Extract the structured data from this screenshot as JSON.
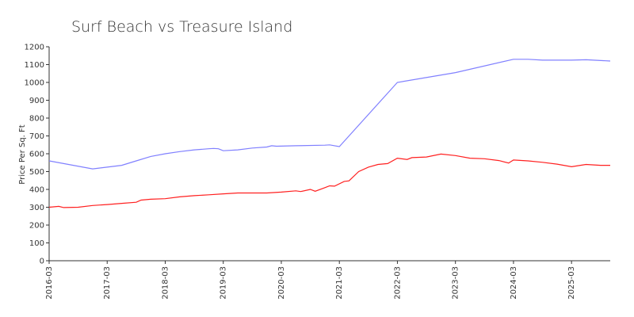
{
  "chart_data": {
    "type": "line",
    "title": "Surf Beach vs Treasure Island",
    "y_label": "Price Per Sq. Ft",
    "xlim": [
      "2016-03",
      "2025-11"
    ],
    "xticks": [
      "2016-03",
      "2017-03",
      "2018-03",
      "2019-03",
      "2020-03",
      "2021-03",
      "2022-03",
      "2023-03",
      "2024-03",
      "2025-03"
    ],
    "ylim": [
      0,
      1200
    ],
    "yticks": [
      0,
      100,
      200,
      300,
      400,
      500,
      600,
      700,
      800,
      900,
      1000,
      1100,
      1200
    ],
    "series": [
      {
        "color": "#8080ff",
        "x": [
          "2016-03",
          "2016-12",
          "2017-03",
          "2017-06",
          "2017-09",
          "2017-12",
          "2018-03",
          "2018-06",
          "2018-09",
          "2018-12",
          "2019-01",
          "2019-02",
          "2019-03",
          "2019-06",
          "2019-09",
          "2019-12",
          "2020-01",
          "2020-02",
          "2020-06",
          "2020-12",
          "2021-01",
          "2021-03",
          "2022-03",
          "2023-03",
          "2024-03",
          "2024-06",
          "2024-09",
          "2025-03",
          "2025-06",
          "2025-11"
        ],
        "values": [
          560,
          515,
          525,
          535,
          560,
          585,
          600,
          612,
          622,
          628,
          630,
          628,
          617,
          622,
          632,
          638,
          645,
          642,
          645,
          648,
          650,
          640,
          1000,
          1055,
          1130,
          1130,
          1125,
          1125,
          1127,
          1120
        ]
      },
      {
        "color": "#ff2020",
        "x": [
          "2016-03",
          "2016-05",
          "2016-06",
          "2016-09",
          "2016-12",
          "2017-03",
          "2017-06",
          "2017-09",
          "2017-10",
          "2017-12",
          "2018-03",
          "2018-06",
          "2018-09",
          "2018-12",
          "2019-03",
          "2019-06",
          "2019-09",
          "2019-12",
          "2020-03",
          "2020-06",
          "2020-07",
          "2020-09",
          "2020-10",
          "2020-12",
          "2021-01",
          "2021-02",
          "2021-04",
          "2021-05",
          "2021-07",
          "2021-09",
          "2021-11",
          "2022-01",
          "2022-03",
          "2022-05",
          "2022-06",
          "2022-09",
          "2022-12",
          "2023-03",
          "2023-06",
          "2023-09",
          "2023-12",
          "2024-02",
          "2024-03",
          "2024-06",
          "2024-09",
          "2024-12",
          "2025-03",
          "2025-06",
          "2025-09",
          "2025-11"
        ],
        "values": [
          300,
          305,
          298,
          300,
          310,
          315,
          322,
          328,
          340,
          345,
          348,
          358,
          365,
          370,
          375,
          380,
          380,
          380,
          385,
          392,
          388,
          400,
          390,
          410,
          420,
          418,
          445,
          448,
          500,
          525,
          540,
          545,
          575,
          568,
          578,
          582,
          598,
          590,
          575,
          572,
          562,
          548,
          565,
          560,
          552,
          542,
          527,
          540,
          535,
          535
        ]
      }
    ]
  }
}
